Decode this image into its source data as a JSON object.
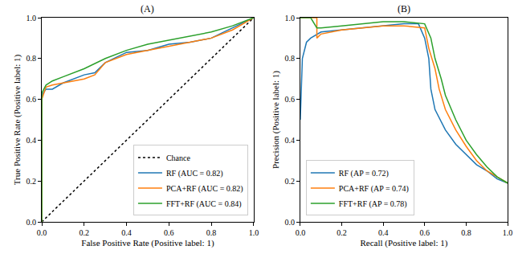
{
  "chart_data": [
    {
      "type": "line",
      "title": "(A)",
      "x_label": "False Positive Rate (Positive label: 1)",
      "y_label": "True Positive Rate (Positive label: 1)",
      "xlim": [
        0,
        1
      ],
      "ylim": [
        0,
        1
      ],
      "xticks": [
        {
          "value": 0,
          "label": "0.0"
        },
        {
          "value": 0.2,
          "label": "0.2"
        },
        {
          "value": 0.4,
          "label": "0.4"
        },
        {
          "value": 0.6,
          "label": "0.6"
        },
        {
          "value": 0.8,
          "label": "0.8"
        },
        {
          "value": 1,
          "label": "1.0"
        }
      ],
      "yticks": [
        {
          "value": 0,
          "label": "0.0"
        },
        {
          "value": 0.2,
          "label": "0.2"
        },
        {
          "value": 0.4,
          "label": "0.4"
        },
        {
          "value": 0.6,
          "label": "0.6"
        },
        {
          "value": 0.8,
          "label": "0.8"
        },
        {
          "value": 1,
          "label": "1.0"
        }
      ],
      "legend": "lower right",
      "grid": false,
      "series": [
        {
          "name": "Chance",
          "color": "#000000",
          "line_style": "dotted",
          "x": [
            0,
            1
          ],
          "values": [
            0,
            1
          ]
        },
        {
          "name": "RF (AUC = 0.82)",
          "color": "#1f77b4",
          "line_style": "solid",
          "x": [
            0,
            0,
            0.02,
            0.05,
            0.1,
            0.15,
            0.2,
            0.25,
            0.3,
            0.4,
            0.5,
            0.6,
            0.7,
            0.8,
            0.9,
            1
          ],
          "values": [
            0,
            0.62,
            0.65,
            0.65,
            0.68,
            0.7,
            0.72,
            0.73,
            0.78,
            0.83,
            0.84,
            0.87,
            0.88,
            0.9,
            0.95,
            1
          ]
        },
        {
          "name": "PCA+RF (AUC = 0.82)",
          "color": "#ff7f0e",
          "line_style": "solid",
          "x": [
            0,
            0,
            0.02,
            0.05,
            0.1,
            0.2,
            0.25,
            0.3,
            0.4,
            0.5,
            0.6,
            0.7,
            0.8,
            0.9,
            0.95,
            1
          ],
          "values": [
            0,
            0.6,
            0.66,
            0.67,
            0.68,
            0.7,
            0.72,
            0.78,
            0.82,
            0.84,
            0.86,
            0.88,
            0.9,
            0.94,
            0.97,
            1
          ]
        },
        {
          "name": "FFT+RF (AUC = 0.84)",
          "color": "#2ca02c",
          "line_style": "solid",
          "x": [
            0,
            0,
            0.02,
            0.05,
            0.1,
            0.2,
            0.3,
            0.4,
            0.5,
            0.6,
            0.7,
            0.8,
            0.9,
            1
          ],
          "values": [
            0,
            0.63,
            0.67,
            0.69,
            0.71,
            0.75,
            0.8,
            0.84,
            0.87,
            0.89,
            0.91,
            0.93,
            0.96,
            1
          ]
        }
      ]
    },
    {
      "type": "line",
      "title": "(B)",
      "x_label": "Recall (Positive label: 1)",
      "y_label": "Precision (Positive label: 1)",
      "xlim": [
        0,
        1
      ],
      "ylim": [
        0,
        1
      ],
      "xticks": [
        {
          "value": 0,
          "label": "0.0"
        },
        {
          "value": 0.2,
          "label": "0.2"
        },
        {
          "value": 0.4,
          "label": "0.4"
        },
        {
          "value": 0.6,
          "label": "0.6"
        },
        {
          "value": 0.8,
          "label": "0.8"
        },
        {
          "value": 1,
          "label": "1.0"
        }
      ],
      "yticks": [
        {
          "value": 0,
          "label": "0.0"
        },
        {
          "value": 0.2,
          "label": "0.2"
        },
        {
          "value": 0.4,
          "label": "0.4"
        },
        {
          "value": 0.6,
          "label": "0.6"
        },
        {
          "value": 0.8,
          "label": "0.8"
        },
        {
          "value": 1,
          "label": "1.0"
        }
      ],
      "legend": "lower left",
      "grid": false,
      "series": [
        {
          "name": "RF (AP = 0.72)",
          "color": "#1f77b4",
          "line_style": "solid",
          "x": [
            0,
            0.01,
            0.03,
            0.05,
            0.1,
            0.2,
            0.3,
            0.4,
            0.5,
            0.57,
            0.6,
            0.62,
            0.63,
            0.65,
            0.7,
            0.75,
            0.8,
            0.85,
            0.9,
            0.95,
            1
          ],
          "values": [
            0.5,
            0.8,
            0.88,
            0.9,
            0.93,
            0.94,
            0.95,
            0.96,
            0.97,
            0.97,
            0.9,
            0.8,
            0.65,
            0.55,
            0.45,
            0.38,
            0.33,
            0.28,
            0.25,
            0.21,
            0.19
          ]
        },
        {
          "name": "PCA+RF (AP = 0.74)",
          "color": "#ff7f0e",
          "line_style": "solid",
          "x": [
            0,
            0.08,
            0.08,
            0.1,
            0.2,
            0.3,
            0.4,
            0.5,
            0.6,
            0.62,
            0.65,
            0.67,
            0.7,
            0.75,
            0.8,
            0.85,
            0.9,
            0.95,
            1
          ],
          "values": [
            1,
            1,
            0.9,
            0.92,
            0.94,
            0.95,
            0.96,
            0.96,
            0.95,
            0.85,
            0.75,
            0.65,
            0.55,
            0.45,
            0.37,
            0.3,
            0.25,
            0.22,
            0.19
          ]
        },
        {
          "name": "FFT+RF (AP = 0.78)",
          "color": "#2ca02c",
          "line_style": "solid",
          "x": [
            0,
            0.05,
            0.08,
            0.1,
            0.2,
            0.3,
            0.4,
            0.5,
            0.6,
            0.63,
            0.65,
            0.68,
            0.7,
            0.75,
            0.8,
            0.85,
            0.9,
            0.95,
            1
          ],
          "values": [
            1,
            1,
            0.95,
            0.95,
            0.96,
            0.97,
            0.98,
            0.98,
            0.97,
            0.9,
            0.8,
            0.7,
            0.62,
            0.5,
            0.4,
            0.33,
            0.27,
            0.22,
            0.19
          ]
        }
      ]
    }
  ]
}
